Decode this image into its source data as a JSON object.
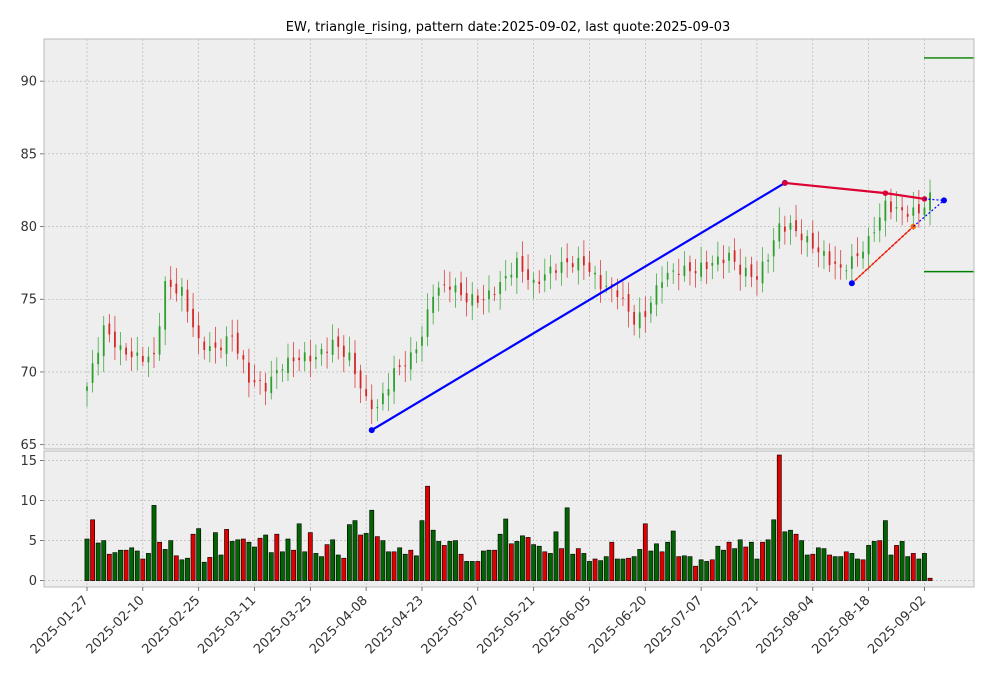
{
  "chart_data": {
    "type": "candlestick",
    "title": "EW, triangle_rising, pattern date:2025-09-02, last quote:2025-09-03",
    "colors": {
      "up": "#2ca02c",
      "down": "#d62728",
      "volume_up": "#006400",
      "volume_down": "#e00000",
      "trend_main": "#0000ff",
      "resistance": "#dd0033",
      "support": "#ff6600",
      "target": "#008000",
      "panel_bg": "#eeeeee",
      "grid": "#b0b0b0"
    },
    "price_axis": {
      "ylim": [
        64.7,
        92.9
      ],
      "ticks": [
        65,
        70,
        75,
        80,
        85,
        90
      ]
    },
    "volume_axis": {
      "ylim": [
        -0.8,
        16.2
      ],
      "ticks": [
        0,
        5,
        10,
        15
      ]
    },
    "x_axis": {
      "tick_labels": [
        "2025-01-27",
        "2025-02-10",
        "2025-02-25",
        "2025-03-11",
        "2025-03-25",
        "2025-04-08",
        "2025-04-23",
        "2025-05-07",
        "2025-05-21",
        "2025-06-05",
        "2025-06-20",
        "2025-07-07",
        "2025-07-21",
        "2025-08-04",
        "2025-08-18",
        "2025-09-02"
      ],
      "tick_index": [
        0,
        10,
        20,
        30,
        40,
        50,
        60,
        70,
        80,
        90,
        100,
        110,
        120,
        130,
        140,
        150
      ]
    },
    "anchor_closes": [
      [
        0,
        69.0
      ],
      [
        3,
        73.0
      ],
      [
        6,
        71.5
      ],
      [
        9,
        71.0
      ],
      [
        12,
        71.0
      ],
      [
        14,
        76.0
      ],
      [
        17,
        75.5
      ],
      [
        20,
        72.0
      ],
      [
        23,
        71.5
      ],
      [
        26,
        72.5
      ],
      [
        29,
        69.5
      ],
      [
        32,
        69.0
      ],
      [
        35,
        70.5
      ],
      [
        38,
        71.0
      ],
      [
        41,
        71.0
      ],
      [
        44,
        72.0
      ],
      [
        47,
        71.0
      ],
      [
        50,
        68.0
      ],
      [
        52,
        67.5
      ],
      [
        55,
        70.0
      ],
      [
        58,
        71.0
      ],
      [
        60,
        72.5
      ],
      [
        62,
        75.5
      ],
      [
        65,
        76.0
      ],
      [
        68,
        75.0
      ],
      [
        71,
        75.0
      ],
      [
        74,
        76.0
      ],
      [
        77,
        77.5
      ],
      [
        80,
        76.0
      ],
      [
        83,
        77.0
      ],
      [
        86,
        77.5
      ],
      [
        89,
        77.5
      ],
      [
        92,
        76.0
      ],
      [
        95,
        75.5
      ],
      [
        98,
        73.5
      ],
      [
        100,
        74.0
      ],
      [
        103,
        76.5
      ],
      [
        106,
        77.0
      ],
      [
        109,
        77.0
      ],
      [
        112,
        77.5
      ],
      [
        115,
        78.0
      ],
      [
        117,
        77.0
      ],
      [
        120,
        76.5
      ],
      [
        122,
        78.0
      ],
      [
        124,
        80.0
      ],
      [
        126,
        80.0
      ],
      [
        129,
        79.0
      ],
      [
        132,
        78.0
      ],
      [
        135,
        77.0
      ],
      [
        138,
        78.0
      ],
      [
        140,
        79.0
      ],
      [
        143,
        81.5
      ],
      [
        146,
        81.0
      ],
      [
        149,
        81.0
      ],
      [
        151,
        82.0
      ]
    ],
    "volumes": [
      5.2,
      7.6,
      4.7,
      5.0,
      3.3,
      3.5,
      3.8,
      3.8,
      4.1,
      3.7,
      2.7,
      3.4,
      9.4,
      4.8,
      3.9,
      5.0,
      3.1,
      2.6,
      2.8,
      5.8,
      6.5,
      2.3,
      2.9,
      6.0,
      3.2,
      6.4,
      4.9,
      5.1,
      5.2,
      4.8,
      4.2,
      5.3,
      5.7,
      3.5,
      5.8,
      3.6,
      5.2,
      3.8,
      7.1,
      3.6,
      6.0,
      3.4,
      3.0,
      4.5,
      5.1,
      3.2,
      2.8,
      7.0,
      7.5,
      5.7,
      5.9,
      8.8,
      5.5,
      5.0,
      3.6,
      3.6,
      4.1,
      3.3,
      3.8,
      3.1,
      7.5,
      11.8,
      6.3,
      4.9,
      4.4,
      4.9,
      5.0,
      3.3,
      2.4,
      2.4,
      2.4,
      3.7,
      3.8,
      3.8,
      5.8,
      7.7,
      4.6,
      4.9,
      5.6,
      5.4,
      4.5,
      4.3,
      3.6,
      3.4,
      6.1,
      4.0,
      9.1,
      3.3,
      4.0,
      3.4,
      2.4,
      2.7,
      2.5,
      3.0,
      4.8,
      2.7,
      2.7,
      2.8,
      3.0,
      3.9,
      7.1,
      3.7,
      4.6,
      3.6,
      4.8,
      6.2,
      3.0,
      3.1,
      3.0,
      1.8,
      2.6,
      2.4,
      2.6,
      4.3,
      3.8,
      4.8,
      4.0,
      5.1,
      4.2,
      4.8,
      2.7,
      4.8,
      5.1,
      7.6,
      15.7,
      6.1,
      6.3,
      5.8,
      5.0,
      3.2,
      3.3,
      4.1,
      4.0,
      3.2,
      3.0,
      3.0,
      3.6,
      3.4,
      2.7,
      2.6,
      4.4,
      4.9,
      5.0,
      7.5,
      3.2,
      4.4,
      4.9,
      3.0,
      3.4,
      2.7,
      3.4,
      0.3
    ],
    "overlays": {
      "main_trend": {
        "points": [
          [
            51,
            66.0
          ],
          [
            125,
            83.0
          ]
        ]
      },
      "resistance": {
        "points": [
          [
            125,
            83.0
          ],
          [
            143,
            82.3
          ],
          [
            150,
            81.9
          ]
        ],
        "extension": [
          [
            150,
            81.9
          ],
          [
            153.5,
            81.8
          ]
        ]
      },
      "support": {
        "points": [
          [
            137,
            76.1
          ],
          [
            148,
            80.0
          ]
        ],
        "extension": [
          [
            148,
            80.0
          ],
          [
            153.5,
            81.8
          ]
        ]
      },
      "target_lines": [
        91.6,
        76.9
      ]
    }
  }
}
